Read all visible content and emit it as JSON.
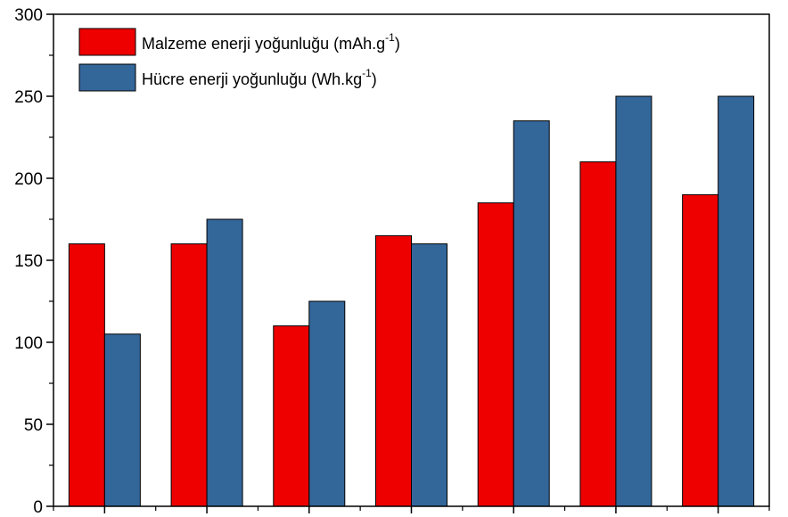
{
  "chart_data": {
    "type": "bar",
    "categories": [
      "",
      "",
      "",
      "",
      "",
      "",
      ""
    ],
    "series": [
      {
        "name": "Malzeme enerji yoğunluğu (mAh.g-1)",
        "label_parts": [
          "Malzeme enerji yoğunluğu (mAh.g",
          "-1",
          ")"
        ],
        "color": "#ee0000",
        "values": [
          160,
          160,
          110,
          165,
          185,
          210,
          190
        ]
      },
      {
        "name": "Hücre enerji yoğunluğu (Wh.kg-1)",
        "label_parts": [
          "Hücre enerji yoğunluğu (Wh.kg",
          "-1",
          ")"
        ],
        "color": "#336699",
        "values": [
          105,
          175,
          125,
          160,
          235,
          250,
          250
        ]
      }
    ],
    "ylim": [
      0,
      300
    ],
    "yticks": [
      "0",
      "50",
      "100",
      "150",
      "200",
      "250",
      "300"
    ],
    "ytick_values": [
      0,
      50,
      100,
      150,
      200,
      250,
      300
    ],
    "title": "",
    "xlabel": "",
    "ylabel": "",
    "legend_position": "top-left",
    "grid": false
  }
}
